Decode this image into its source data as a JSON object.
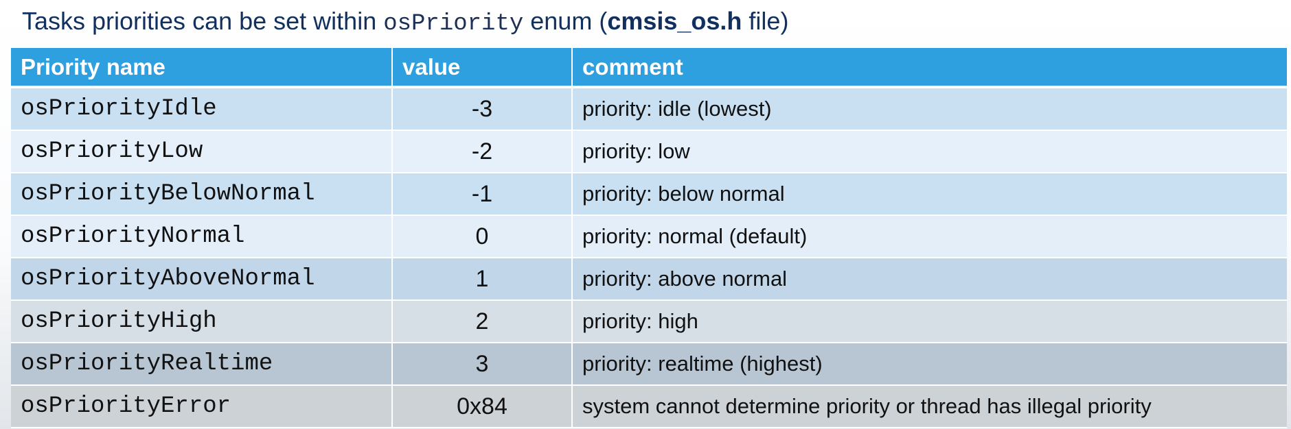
{
  "heading": {
    "part1": "Tasks priorities can be set within ",
    "code": "osPriority",
    "part2": " enum (",
    "file": "cmsis_os.h",
    "part3": " file)"
  },
  "table": {
    "headers": {
      "name": "Priority name",
      "value": "value",
      "comment": "comment"
    },
    "rows": [
      {
        "name": "osPriorityIdle",
        "value": "-3",
        "comment": "priority: idle (lowest)"
      },
      {
        "name": "osPriorityLow",
        "value": "-2",
        "comment": "priority: low"
      },
      {
        "name": "osPriorityBelowNormal",
        "value": "-1",
        "comment": "priority: below normal"
      },
      {
        "name": "osPriorityNormal",
        "value": "0",
        "comment": "priority: normal (default)"
      },
      {
        "name": "osPriorityAboveNormal",
        "value": "1",
        "comment": "priority: above normal"
      },
      {
        "name": "osPriorityHigh",
        "value": "2",
        "comment": "priority: high"
      },
      {
        "name": "osPriorityRealtime",
        "value": "3",
        "comment": "priority: realtime (highest)"
      },
      {
        "name": "osPriorityError",
        "value": "0x84",
        "comment": "system cannot determine priority or thread has illegal priority"
      }
    ]
  },
  "colors": {
    "header_bg": "#2e9fdf",
    "heading_text": "#12305f"
  }
}
